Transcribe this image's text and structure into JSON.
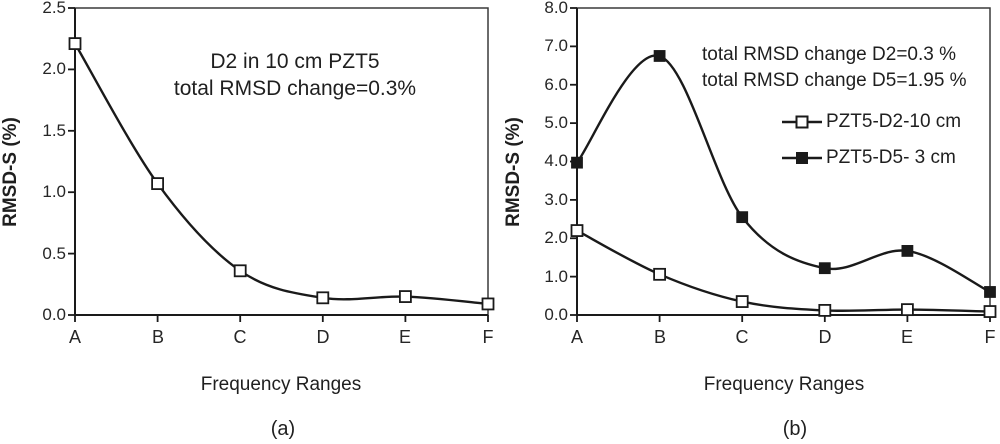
{
  "colors": {
    "line": "#1a1a1a",
    "frame": "#3a3a3a",
    "text": "#262626",
    "background": "#ffffff"
  },
  "chart_data": [
    {
      "type": "line",
      "panel": "(a)",
      "title": "",
      "xlabel": "Frequency Ranges",
      "ylabel": "RMSD-S (%)",
      "categories": [
        "A",
        "B",
        "C",
        "D",
        "E",
        "F"
      ],
      "series": [
        {
          "name": "PZT5-D2-10 cm",
          "marker": "open-square",
          "values": [
            2.21,
            1.07,
            0.36,
            0.14,
            0.15,
            0.09
          ]
        }
      ],
      "annotation": [
        "D2 in 10 cm PZT5",
        "total RMSD change=0.3%"
      ],
      "ylim": [
        0,
        2.5
      ],
      "ytick_labels": [
        "0.0",
        "0.5",
        "1.0",
        "1.5",
        "2.0",
        "2.5"
      ],
      "grid": false,
      "legend": null
    },
    {
      "type": "line",
      "panel": "(b)",
      "title": "",
      "xlabel": "Frequency Ranges",
      "ylabel": "RMSD-S (%)",
      "categories": [
        "A",
        "B",
        "C",
        "D",
        "E",
        "F"
      ],
      "series": [
        {
          "name": "PZT5-D2-10 cm",
          "marker": "open-square",
          "values": [
            2.2,
            1.06,
            0.35,
            0.12,
            0.14,
            0.09
          ]
        },
        {
          "name": "PZT5-D5- 3 cm",
          "marker": "filled-square",
          "values": [
            3.97,
            6.75,
            2.55,
            1.22,
            1.67,
            0.6
          ]
        }
      ],
      "annotation": [
        "total RMSD change D2=0.3 %",
        "total RMSD change D5=1.95 %"
      ],
      "ylim": [
        0,
        8
      ],
      "ytick_labels": [
        "0.0",
        "1.0",
        "2.0",
        "3.0",
        "4.0",
        "5.0",
        "6.0",
        "7.0",
        "8.0"
      ],
      "grid": false,
      "legend": {
        "position": "upper-right",
        "entries": [
          "PZT5-D2-10 cm",
          "PZT5-D5- 3 cm"
        ]
      }
    }
  ]
}
